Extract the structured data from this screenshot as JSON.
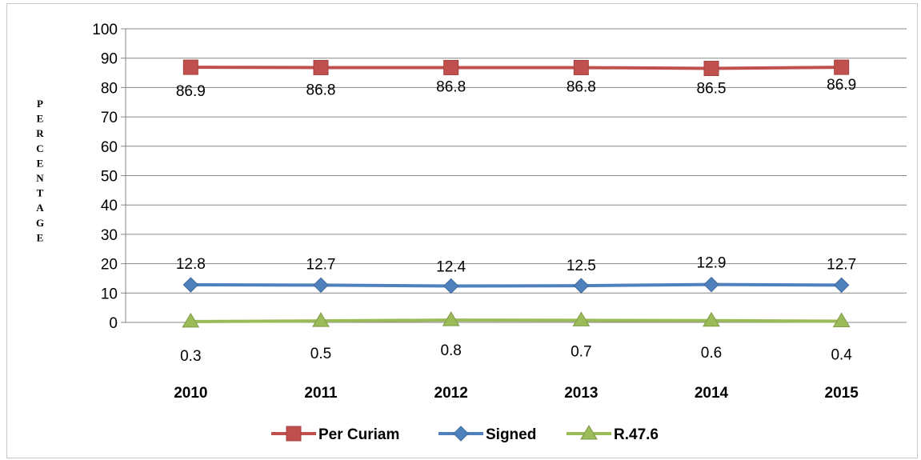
{
  "chart_data": {
    "type": "line",
    "title": "",
    "xlabel": "",
    "ylabel": "PERCENTAGE",
    "categories": [
      "2010",
      "2011",
      "2012",
      "2013",
      "2014",
      "2015"
    ],
    "ylim": [
      0,
      100
    ],
    "yticks": [
      "0",
      "10",
      "20",
      "30",
      "40",
      "50",
      "60",
      "70",
      "80",
      "90",
      "100"
    ],
    "grid": true,
    "legend_position": "bottom",
    "series": [
      {
        "name": "Per Curiam",
        "values": [
          86.9,
          86.8,
          86.8,
          86.8,
          86.5,
          86.9
        ],
        "labels": [
          "86.9",
          "86.8",
          "86.8",
          "86.8",
          "86.5",
          "86.9"
        ],
        "color": "#c0504d",
        "marker": "square"
      },
      {
        "name": "Signed",
        "values": [
          12.8,
          12.7,
          12.4,
          12.5,
          12.9,
          12.7
        ],
        "labels": [
          "12.8",
          "12.7",
          "12.4",
          "12.5",
          "12.9",
          "12.7"
        ],
        "color": "#4f81bd",
        "marker": "diamond"
      },
      {
        "name": "R.47.6",
        "values": [
          0.3,
          0.5,
          0.8,
          0.7,
          0.6,
          0.4
        ],
        "labels": [
          "0.3",
          "0.5",
          "0.8",
          "0.7",
          "0.6",
          "0.4"
        ],
        "color": "#9bbb59",
        "marker": "triangle"
      }
    ]
  }
}
